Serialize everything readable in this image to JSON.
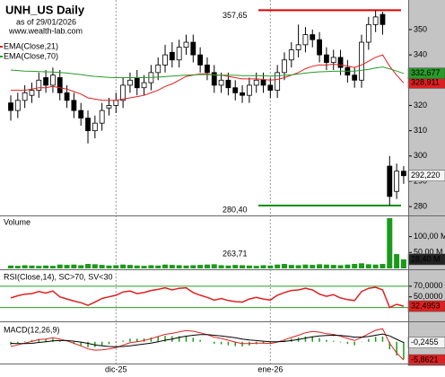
{
  "chart_data": [
    {
      "type": "candlestick",
      "title": "UNH_US Daily",
      "subtitle": "as of 29/01/2026",
      "source": "www.wealth-lab.com",
      "categories": [
        null,
        null,
        null,
        null,
        null,
        null,
        null,
        null,
        null,
        null,
        null,
        null,
        null,
        null,
        null,
        "dic-25",
        null,
        null,
        null,
        null,
        null,
        null,
        null,
        null,
        null,
        null,
        null,
        null,
        null,
        null,
        null,
        null,
        null,
        null,
        null,
        null,
        null,
        "ene-26",
        null,
        null,
        null,
        null,
        null,
        null,
        null,
        null,
        null,
        null,
        null,
        null,
        null,
        null,
        null,
        null,
        null,
        null,
        null
      ],
      "open": [
        321,
        318,
        322,
        324,
        326,
        331,
        328,
        331,
        325,
        322,
        318,
        315,
        310,
        313,
        319,
        320,
        322,
        328,
        331,
        327,
        329,
        333,
        336,
        341,
        338,
        343,
        345,
        340,
        336,
        333,
        328,
        330,
        327,
        325,
        324,
        328,
        330,
        328,
        326,
        333,
        338,
        342,
        344,
        348,
        346,
        340,
        337,
        339,
        335,
        332,
        330,
        345,
        352,
        356,
        296,
        286,
        294
      ],
      "high": [
        324,
        325,
        328,
        329,
        333,
        334,
        335,
        334,
        328,
        325,
        321,
        318,
        316,
        321,
        323,
        325,
        331,
        333,
        334,
        332,
        336,
        339,
        344,
        345,
        346,
        348,
        348,
        343,
        339,
        336,
        333,
        333,
        330,
        328,
        331,
        333,
        333,
        331,
        336,
        341,
        345,
        352,
        351,
        350,
        349,
        343,
        342,
        342,
        338,
        335,
        348,
        355,
        357.65,
        357,
        300,
        297,
        296
      ],
      "low": [
        314,
        315,
        319,
        321,
        323,
        325,
        325,
        322,
        319,
        315,
        312,
        305,
        307,
        310,
        316,
        317,
        319,
        325,
        324,
        324,
        326,
        330,
        333,
        335,
        335,
        340,
        337,
        333,
        330,
        325,
        325,
        324,
        322,
        321,
        321,
        325,
        325,
        323,
        323,
        330,
        335,
        339,
        341,
        343,
        337,
        334,
        334,
        332,
        329,
        327,
        327,
        342,
        349,
        348,
        280.4,
        283,
        289
      ],
      "close": [
        318,
        322,
        325,
        326,
        330,
        328,
        332,
        325,
        322,
        318,
        315,
        310,
        313,
        318,
        320,
        322,
        328,
        330,
        327,
        329,
        333,
        336,
        340,
        338,
        343,
        345,
        340,
        336,
        333,
        328,
        330,
        327,
        325,
        324,
        328,
        330,
        328,
        326,
        333,
        338,
        342,
        344,
        348,
        346,
        340,
        337,
        339,
        335,
        332,
        330,
        345,
        352,
        355,
        352,
        284,
        294,
        292.22
      ],
      "close_label": "292,220",
      "ylim": [
        276.5,
        361.7
      ],
      "yticks": [
        280,
        290,
        300,
        310,
        320,
        330,
        340,
        350
      ],
      "series": [
        {
          "name": "EMA(Close,21)",
          "color": "#e02020",
          "last_label": "328,911",
          "values": [
            326,
            326,
            326,
            326.5,
            327,
            327,
            327.5,
            327,
            326.5,
            325.5,
            324.5,
            323,
            322.5,
            322,
            322,
            322,
            322.5,
            323,
            323.5,
            324,
            325,
            326,
            327.5,
            328.5,
            330,
            331.5,
            332,
            332.5,
            332.5,
            332,
            332,
            331.5,
            331,
            330.5,
            330.5,
            330.5,
            330.3,
            330,
            330.3,
            331,
            332,
            333,
            334.5,
            335.5,
            336,
            336,
            336.3,
            336,
            335.6,
            335,
            336,
            337.5,
            339,
            340,
            335.5,
            332,
            328.911
          ]
        },
        {
          "name": "EMA(Close,70)",
          "color": "#2a9a2a",
          "last_label": "332,677",
          "values": [
            334,
            333.8,
            333.6,
            333.5,
            333.4,
            333.3,
            333.2,
            333,
            332.8,
            332.5,
            332.2,
            331.8,
            331.5,
            331.3,
            331.1,
            331,
            331,
            331,
            331,
            331,
            331.1,
            331.2,
            331.4,
            331.6,
            331.8,
            332,
            332.1,
            332.2,
            332.2,
            332.1,
            332,
            332,
            331.9,
            331.8,
            331.8,
            331.8,
            331.7,
            331.6,
            331.7,
            331.9,
            332.1,
            332.4,
            332.8,
            333.1,
            333.3,
            333.4,
            333.5,
            333.6,
            333.6,
            333.6,
            333.9,
            334.3,
            334.8,
            335.2,
            334.5,
            333.6,
            332.677
          ]
        }
      ],
      "annotations": [
        {
          "value": 357.65,
          "label": "357,65",
          "color": "#e00000"
        },
        {
          "value": 280.4,
          "label": "280,40",
          "color": "#009000"
        }
      ]
    },
    {
      "type": "bar",
      "title": "Volume",
      "color": "#1a9a1a",
      "annotation": "263,71",
      "values": [
        9,
        8,
        10,
        9,
        8,
        9,
        8,
        12,
        11,
        12,
        10,
        14,
        13,
        11,
        9,
        10,
        12,
        11,
        9,
        8,
        10,
        9,
        12,
        11,
        10,
        9,
        10,
        11,
        12,
        13,
        10,
        9,
        11,
        10,
        9,
        8,
        10,
        9,
        12,
        14,
        11,
        10,
        12,
        11,
        13,
        12,
        11,
        10,
        12,
        14,
        16,
        13,
        12,
        14,
        158,
        45,
        28.4
      ],
      "last_label": "28,40 M",
      "ylim": [
        0,
        161
      ],
      "yticks": [
        {
          "value": 50,
          "label": "50,00 M"
        },
        {
          "value": 100,
          "label": "100,00 M"
        }
      ]
    },
    {
      "type": "line",
      "title": "RSI(Close,14), SC>70, SV<30",
      "color": "#e02020",
      "levels": [
        70,
        30
      ],
      "level_color": "#2a9a2a",
      "values": [
        48,
        52,
        55,
        56,
        60,
        57,
        61,
        50,
        46,
        42,
        39,
        34,
        40,
        47,
        50,
        53,
        59,
        61,
        56,
        58,
        62,
        64,
        67,
        63,
        66,
        67,
        58,
        53,
        49,
        44,
        47,
        43,
        41,
        40,
        46,
        49,
        46,
        44,
        53,
        58,
        62,
        63,
        66,
        63,
        55,
        51,
        54,
        48,
        45,
        43,
        60,
        66,
        68,
        63,
        30,
        36,
        32.4953
      ],
      "last_label": "32,4953",
      "ylim": [
        4,
        100
      ],
      "yticks": [
        {
          "value": 70,
          "label": "70,0000"
        },
        {
          "value": 50,
          "label": "50,0000"
        }
      ]
    },
    {
      "type": "macd",
      "title": "MACD(12,26,9)",
      "ylim": [
        -7,
        6
      ],
      "series": [
        {
          "color": "#e02020",
          "last_label": "-5,8621",
          "values": [
            -1.5,
            -1.0,
            -0.4,
            0.1,
            0.7,
            0.9,
            1.3,
            0.9,
            0.3,
            -0.5,
            -1.3,
            -2.3,
            -2.7,
            -2.6,
            -2.3,
            -1.9,
            -1.1,
            -0.3,
            0.0,
            0.4,
            1.0,
            1.7,
            2.4,
            2.7,
            3.2,
            3.6,
            3.4,
            2.9,
            2.3,
            1.5,
            1.1,
            0.5,
            -0.1,
            -0.6,
            -0.6,
            -0.4,
            -0.4,
            -0.6,
            -0.1,
            0.6,
            1.4,
            2.1,
            2.9,
            3.3,
            3.1,
            2.6,
            2.4,
            1.8,
            1.1,
            0.4,
            1.4,
            2.6,
            3.7,
            4.2,
            -0.5,
            -3.6,
            -5.8621
          ]
        },
        {
          "color": "#000000",
          "last_label": "-0,2455",
          "values": [
            -0.5,
            -0.6,
            -0.6,
            -0.5,
            -0.2,
            0.0,
            0.3,
            0.4,
            0.4,
            0.2,
            -0.1,
            -0.5,
            -1.0,
            -1.3,
            -1.5,
            -1.6,
            -1.5,
            -1.3,
            -1.0,
            -0.7,
            -0.4,
            0.0,
            0.5,
            0.9,
            1.4,
            1.8,
            2.1,
            2.3,
            2.3,
            2.1,
            1.9,
            1.6,
            1.3,
            0.9,
            0.6,
            0.4,
            0.2,
            0.0,
            0.0,
            0.1,
            0.4,
            0.7,
            1.2,
            1.6,
            1.9,
            2.0,
            2.1,
            2.0,
            1.8,
            1.5,
            1.5,
            1.7,
            2.1,
            2.5,
            1.9,
            0.8,
            -0.2455
          ]
        }
      ],
      "histogram": {
        "color": "#1a9a1a",
        "values": [
          -1.0,
          -0.4,
          0.2,
          0.6,
          0.9,
          0.9,
          1.0,
          0.5,
          -0.1,
          -0.7,
          -1.2,
          -1.8,
          -1.7,
          -1.3,
          -0.8,
          -0.3,
          0.4,
          1.0,
          1.0,
          1.1,
          1.4,
          1.7,
          1.9,
          1.8,
          1.8,
          1.8,
          1.3,
          0.6,
          0.0,
          -0.6,
          -0.8,
          -1.1,
          -1.4,
          -1.5,
          -1.2,
          -0.8,
          -0.6,
          -0.6,
          -0.1,
          0.5,
          1.0,
          1.4,
          1.7,
          1.7,
          1.2,
          0.6,
          0.3,
          -0.2,
          -0.7,
          -1.1,
          -0.1,
          0.9,
          1.6,
          1.7,
          -2.4,
          -4.4,
          -5.6166
        ]
      }
    }
  ]
}
